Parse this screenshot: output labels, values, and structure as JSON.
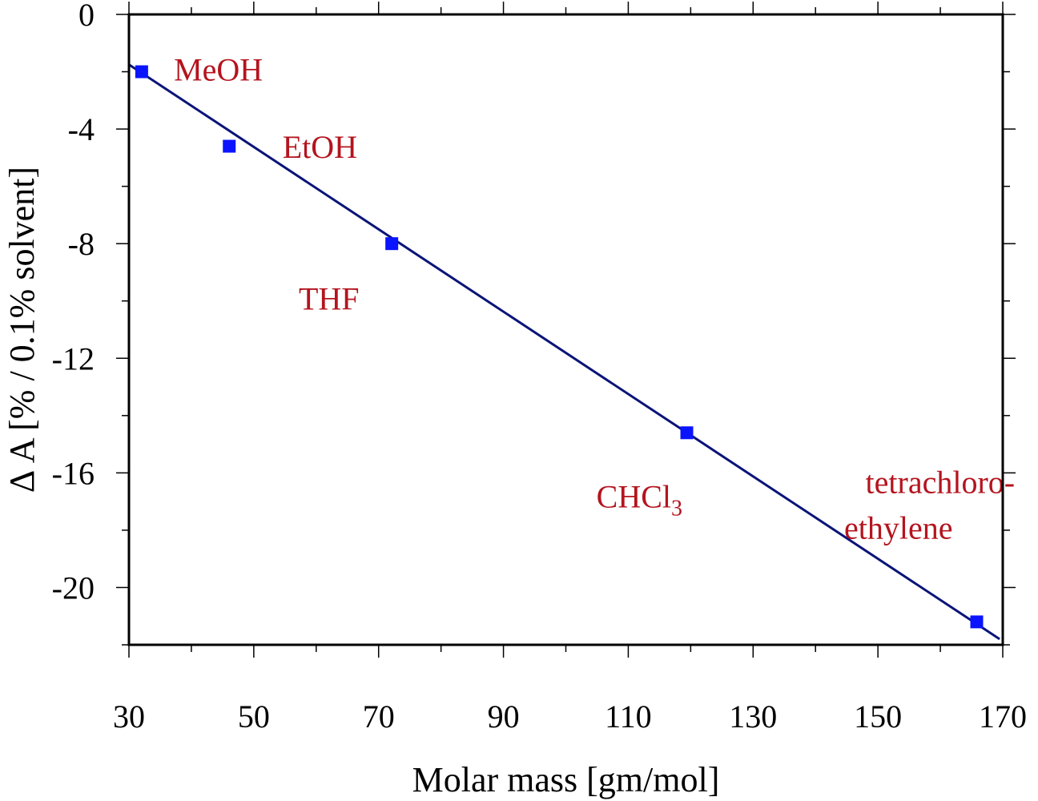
{
  "chart_data": {
    "type": "scatter",
    "title": "",
    "xlabel": "Molar mass [gm/mol]",
    "ylabel": "Δ A  [% / 0.1% solvent]",
    "xlim": [
      30,
      170
    ],
    "ylim": [
      -22,
      0
    ],
    "x_ticks": [
      30,
      50,
      70,
      90,
      110,
      130,
      150,
      170
    ],
    "y_ticks": [
      0,
      -4,
      -8,
      -12,
      -16,
      -20
    ],
    "grid": false,
    "legend": "none",
    "points": [
      {
        "x": 32.04,
        "y": -2.0
      },
      {
        "x": 46.07,
        "y": -4.6
      },
      {
        "x": 72.11,
        "y": -8.0
      },
      {
        "x": 119.38,
        "y": -14.6
      },
      {
        "x": 165.83,
        "y": -21.2
      }
    ],
    "fit_line": {
      "x": [
        30,
        169.5
      ],
      "y": [
        -1.75,
        -21.8
      ]
    },
    "annotations": [
      {
        "name": "meoh",
        "text": "MeOH",
        "sub": "",
        "x": 37.2,
        "y": -2.3
      },
      {
        "name": "etoh",
        "text": "EtOH",
        "sub": "",
        "x": 54.6,
        "y": -5.0
      },
      {
        "name": "thf",
        "text": "THF",
        "sub": "",
        "x": 57.2,
        "y": -10.3
      },
      {
        "name": "chcl3",
        "text": "CHCl",
        "sub": "3",
        "x": 104.9,
        "y": -17.2
      },
      {
        "name": "tetrachloro-1",
        "text": "tetrachloro-",
        "sub": "",
        "x": 148.0,
        "y": -16.7
      },
      {
        "name": "tetrachloro-2",
        "text": "ethylene",
        "sub": "",
        "x": 144.6,
        "y": -18.3
      }
    ],
    "colors": {
      "marker": "#0a14ff",
      "line": "#0a1478",
      "labels": "#b4141e",
      "axes": "#000000"
    }
  }
}
